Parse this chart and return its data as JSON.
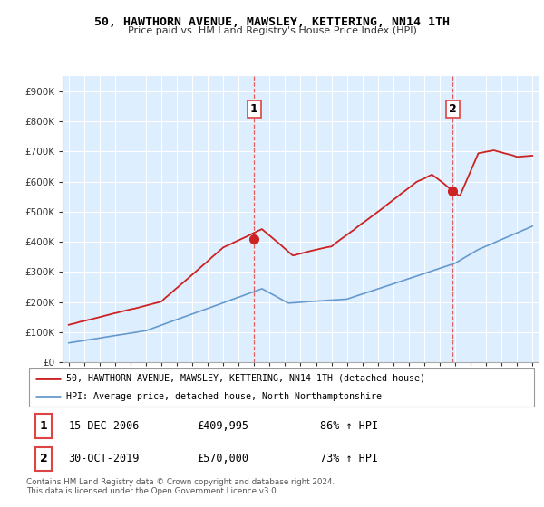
{
  "title": "50, HAWTHORN AVENUE, MAWSLEY, KETTERING, NN14 1TH",
  "subtitle": "Price paid vs. HM Land Registry's House Price Index (HPI)",
  "legend_line1": "50, HAWTHORN AVENUE, MAWSLEY, KETTERING, NN14 1TH (detached house)",
  "legend_line2": "HPI: Average price, detached house, North Northamptonshire",
  "annotation1_label": "1",
  "annotation1_date": "15-DEC-2006",
  "annotation1_price": "£409,995",
  "annotation1_hpi": "86% ↑ HPI",
  "annotation2_label": "2",
  "annotation2_date": "30-OCT-2019",
  "annotation2_price": "£570,000",
  "annotation2_hpi": "73% ↑ HPI",
  "footer": "Contains HM Land Registry data © Crown copyright and database right 2024.\nThis data is licensed under the Open Government Licence v3.0.",
  "sale1_year": 2007.0,
  "sale1_price": 409995,
  "sale2_year": 2019.83,
  "sale2_price": 570000,
  "red_color": "#cc2222",
  "blue_color": "#6699cc",
  "bg_color": "#ddeeff",
  "dashed_color": "#dd4444",
  "ylim_max": 950000,
  "ylim_min": 0,
  "xmin": 1995,
  "xmax": 2025
}
